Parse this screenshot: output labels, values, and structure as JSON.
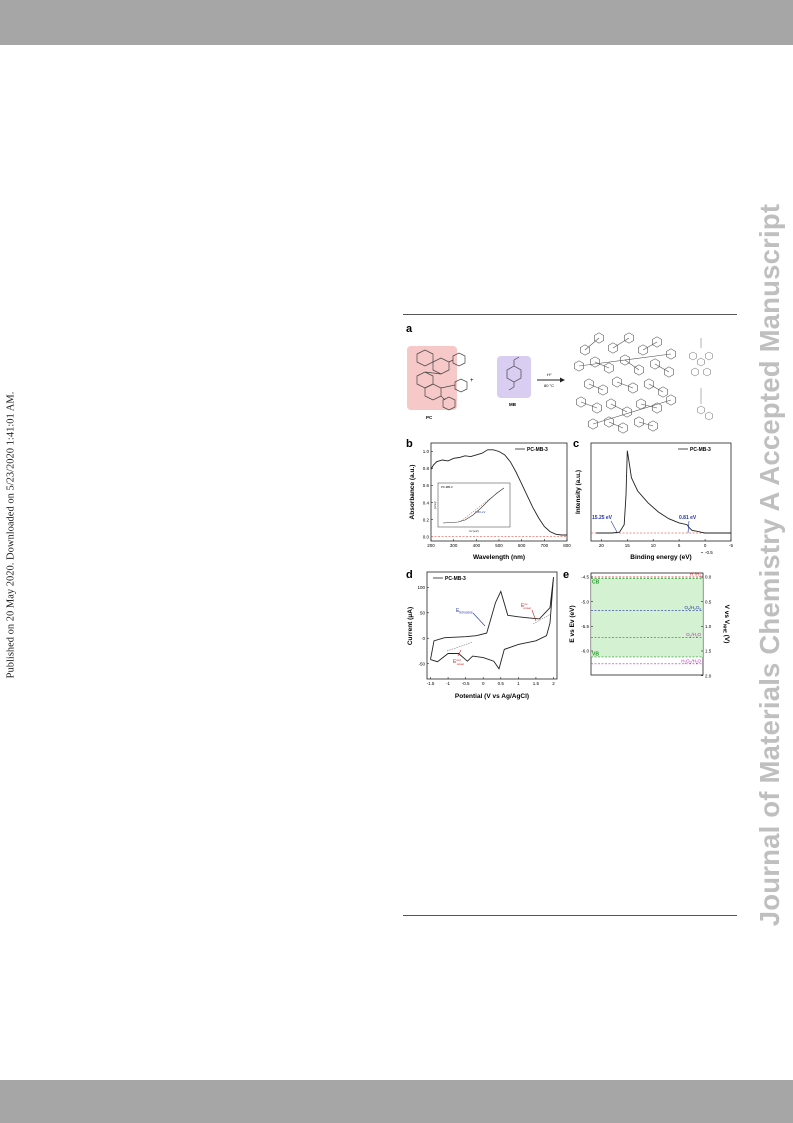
{
  "page": {
    "side_note": "Published on 20 May 2020. Downloaded on 5/23/2020 1:41:01 AM.",
    "watermark": "Journal of Materials Chemistry A Accepted Manuscript"
  },
  "figure": {
    "panel_a": {
      "letter": "a",
      "pc_label": "PC",
      "mb_label": "MB",
      "arrow_top": "H⁺",
      "arrow_bottom": "80 °C"
    },
    "panel_b": {
      "letter": "b",
      "legend": "PC-MB-3",
      "xlabel": "Wavelength (nm)",
      "ylabel": "Absorbance (a.u.)",
      "inset_legend": "PC-MB-3",
      "inset_annotation": "1.80 eV",
      "inset_xlabel": "hν (eV)",
      "inset_ylabel": "(αhν)²"
    },
    "panel_c": {
      "letter": "c",
      "legend": "PC-MB-3",
      "xlabel": "Binding energy (eV)",
      "ylabel": "Intensity (a.u.)",
      "annotation_left": "15.25 eV",
      "annotation_right": "0.81 eV"
    },
    "panel_d": {
      "letter": "d",
      "legend": "PC-MB-3",
      "xlabel": "Potential (V vs Ag/AgCl)",
      "ylabel": "Current (μA)",
      "label_ref": "E",
      "label_ref_sub": "ferrocene",
      "label_ox": "E",
      "label_ox_sub": "onset",
      "label_ox_sup": "ox",
      "label_red": "E",
      "label_red_sub": "onset",
      "label_red_sup": "red"
    },
    "panel_e": {
      "letter": "e",
      "ylabel_left": "E vs Ev (eV)",
      "ylabel_right_prefix": "V vs V",
      "ylabel_right_sub": "NHE",
      "ylabel_right_suffix": " (V)",
      "cb_label": "CB",
      "vb_label": "VB",
      "levels": [
        {
          "main": "H",
          "sup": "+",
          "sep": "/",
          "main2": "H",
          "sub2": "2"
        },
        {
          "main": "O",
          "sub": "2",
          "sep": "/H",
          "main2": "",
          "sub2": "2",
          "tail": "O",
          "tail_sub": "2"
        },
        {
          "main": "O",
          "sub": "2",
          "sep": "/H",
          "main2": "",
          "sub2": "2",
          "tail": "O"
        },
        {
          "main": "H",
          "sub": "2",
          "sep": "O",
          "main2": "",
          "sub2": "2",
          "tail": "/H",
          "tail_sub": "2",
          "tail2": "O"
        }
      ]
    }
  },
  "chart_data": [
    {
      "panel": "b",
      "type": "line",
      "xlabel": "Wavelength (nm)",
      "ylabel": "Absorbance (a.u.)",
      "xlim": [
        200,
        800
      ],
      "ylim": [
        -0.05,
        1.1
      ],
      "xticks": [
        200,
        300,
        400,
        500,
        600,
        700,
        800
      ],
      "yticks": [
        0.0,
        0.2,
        0.4,
        0.6,
        0.8,
        1.0
      ],
      "series": [
        {
          "name": "PC-MB-3",
          "x": [
            200,
            210,
            225,
            250,
            275,
            300,
            325,
            350,
            375,
            400,
            425,
            450,
            475,
            500,
            525,
            550,
            575,
            600,
            625,
            650,
            675,
            700,
            725,
            750,
            775,
            800
          ],
          "y": [
            0.79,
            0.84,
            0.88,
            0.9,
            0.89,
            0.92,
            0.93,
            0.95,
            0.94,
            0.96,
            0.98,
            1.02,
            1.02,
            1.0,
            0.96,
            0.88,
            0.76,
            0.62,
            0.48,
            0.34,
            0.22,
            0.12,
            0.06,
            0.03,
            0.02,
            0.02
          ]
        }
      ],
      "reference_line": 0.0
    },
    {
      "panel": "c",
      "type": "line",
      "xlabel": "Binding energy (eV)",
      "ylabel": "Intensity (a.u.)",
      "xlim": [
        22,
        -5
      ],
      "xticks": [
        20,
        15,
        10,
        5,
        0,
        -5
      ],
      "series": [
        {
          "name": "PC-MB-3",
          "x": [
            21,
            18,
            16.5,
            15.6,
            15.25,
            15.0,
            14.6,
            14.2,
            13,
            11,
            9,
            7,
            5,
            3.5,
            3,
            2.5,
            1.5,
            0.81,
            0,
            -2,
            -5
          ],
          "y": [
            0.0,
            0.0,
            0.01,
            0.1,
            0.45,
            0.98,
            0.82,
            0.66,
            0.5,
            0.36,
            0.25,
            0.17,
            0.12,
            0.1,
            0.06,
            0.03,
            0.02,
            0.01,
            0.0,
            0.0,
            0.0
          ]
        }
      ]
    },
    {
      "panel": "d",
      "type": "line",
      "xlabel": "Potential (V vs Ag/AgCl)",
      "ylabel": "Current (μA)",
      "xlim": [
        -1.6,
        2.1
      ],
      "ylim": [
        -80,
        130
      ],
      "xticks": [
        -1.5,
        -1.0,
        -0.5,
        0.0,
        0.5,
        1.0,
        1.5,
        2.0
      ],
      "yticks": [
        -50,
        0,
        50,
        100
      ],
      "series": [
        {
          "name": "PC-MB-3",
          "x": [
            -1.5,
            -1.3,
            -1.0,
            -0.7,
            -0.45,
            -0.3,
            0.0,
            0.3,
            0.45,
            0.6,
            1.0,
            1.5,
            1.8,
            1.9,
            2.0,
            1.9,
            1.6,
            1.3,
            1.0,
            0.7,
            0.5,
            0.35,
            0.1,
            -0.2,
            -0.5,
            -0.8,
            -1.1,
            -1.4,
            -1.5
          ],
          "y": [
            -42,
            -46,
            -30,
            -30,
            -45,
            -35,
            -38,
            -45,
            -60,
            -22,
            -12,
            -5,
            5,
            30,
            120,
            60,
            38,
            40,
            42,
            45,
            92,
            70,
            10,
            5,
            3,
            2,
            1,
            -5,
            -42
          ]
        }
      ]
    },
    {
      "panel": "e",
      "type": "diagram",
      "ylabel_left": "E vs Ev (eV)",
      "ylim_left": [
        -4.5,
        -6.0
      ],
      "yticks_left": [
        -4.5,
        -5.0,
        -5.5,
        -6.0
      ],
      "yticks_right": [
        -0.5,
        0.0,
        0.5,
        1.0,
        1.5,
        2.0
      ],
      "cb_eV": -4.53,
      "vb_eV": -6.12,
      "level_potentials_V": [
        0.0,
        0.68,
        1.23,
        1.76
      ]
    }
  ]
}
